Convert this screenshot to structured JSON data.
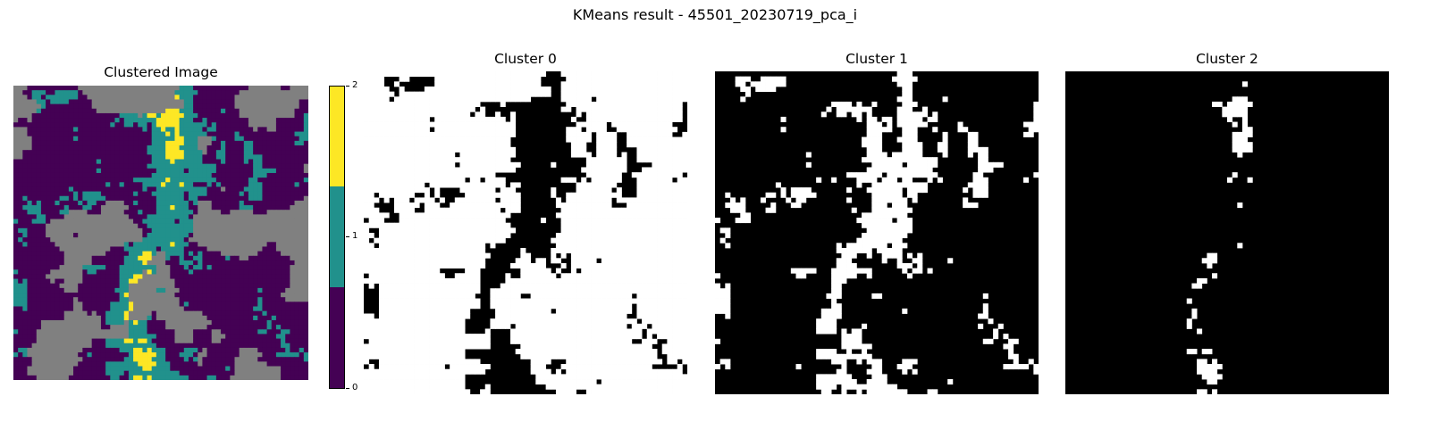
{
  "suptitle": "KMeans result - 45501_20230719_pca_i",
  "panels": [
    {
      "title": "Clustered Image"
    },
    {
      "title": "Cluster 0"
    },
    {
      "title": "Cluster 1"
    },
    {
      "title": "Cluster 2"
    }
  ],
  "colorbar": {
    "colormap": "viridis",
    "levels": [
      {
        "value": 0,
        "label": "0",
        "color": "#440154"
      },
      {
        "value": 1,
        "label": "1",
        "color": "#21918c"
      },
      {
        "value": 2,
        "label": "2",
        "color": "#fde725"
      }
    ],
    "range": [
      0,
      2
    ]
  },
  "nodata_color": "#808080",
  "mask_colors": {
    "in_cluster": "#ffffff",
    "background": "#000000"
  },
  "chart_data": {
    "type": "heatmap",
    "suptitle": "KMeans result - 45501_20230719_pca_i",
    "n_clusters": 3,
    "axes_visible": false,
    "subplots": [
      {
        "title": "Clustered Image",
        "kind": "categorical-map",
        "cmap": "viridis",
        "classes": [
          0,
          1,
          2
        ],
        "nodata_color": "#808080",
        "colorbar": {
          "ticks": [
            0,
            1,
            2
          ],
          "range": [
            0,
            2
          ]
        }
      },
      {
        "title": "Cluster 0",
        "kind": "binary-mask",
        "shows_cluster": 0,
        "cluster_color": "#ffffff",
        "other_color": "#000000"
      },
      {
        "title": "Cluster 1",
        "kind": "binary-mask",
        "shows_cluster": 1,
        "cluster_color": "#ffffff",
        "other_color": "#000000"
      },
      {
        "title": "Cluster 2",
        "kind": "binary-mask",
        "shows_cluster": 2,
        "cluster_color": "#ffffff",
        "other_color": "#000000"
      }
    ]
  }
}
